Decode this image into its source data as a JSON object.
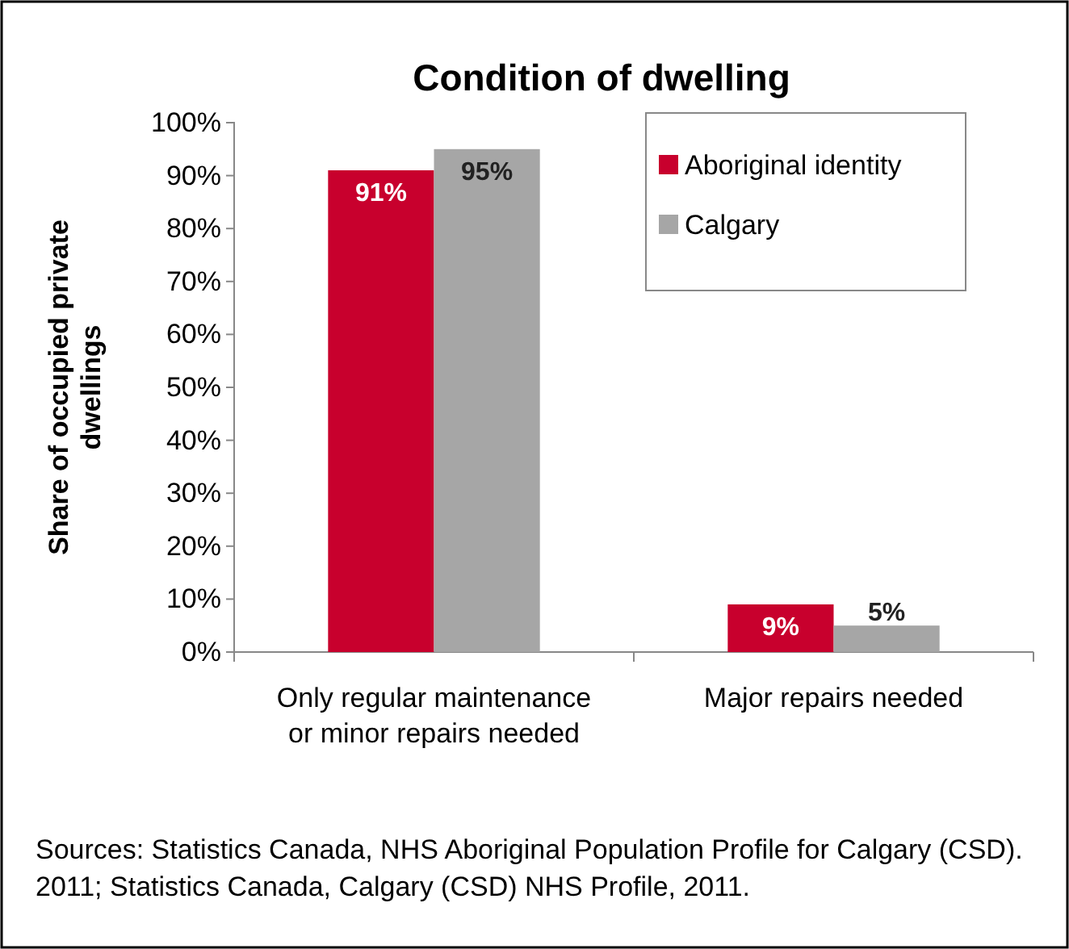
{
  "chart_data": {
    "type": "bar",
    "title": "Condition of dwelling",
    "ylabel": "Share of occupied private dwellings",
    "categories": [
      "Only regular maintenance or minor repairs needed",
      "Major repairs needed"
    ],
    "series": [
      {
        "name": "Aboriginal identity",
        "color": "#c8002d",
        "values": [
          91,
          9
        ],
        "value_labels": [
          "91%",
          "9%"
        ]
      },
      {
        "name": "Calgary",
        "color": "#a6a6a6",
        "values": [
          95,
          5
        ],
        "value_labels": [
          "95%",
          "5%"
        ]
      }
    ],
    "ylim": [
      0,
      100
    ],
    "yticks": [
      {
        "value": 0,
        "label": "0%"
      },
      {
        "value": 10,
        "label": "10%"
      },
      {
        "value": 20,
        "label": "20%"
      },
      {
        "value": 30,
        "label": "30%"
      },
      {
        "value": 40,
        "label": "40%"
      },
      {
        "value": 50,
        "label": "50%"
      },
      {
        "value": 60,
        "label": "60%"
      },
      {
        "value": 70,
        "label": "70%"
      },
      {
        "value": 80,
        "label": "80%"
      },
      {
        "value": 90,
        "label": "90%"
      },
      {
        "value": 100,
        "label": "100%"
      }
    ],
    "legend": "top right",
    "grid": false,
    "annotations": [
      "Sources: Statistics Canada, NHS Aboriginal Population Profile for Calgary (CSD). 2011; Statistics Canada, Calgary (CSD) NHS Profile, 2011."
    ]
  }
}
